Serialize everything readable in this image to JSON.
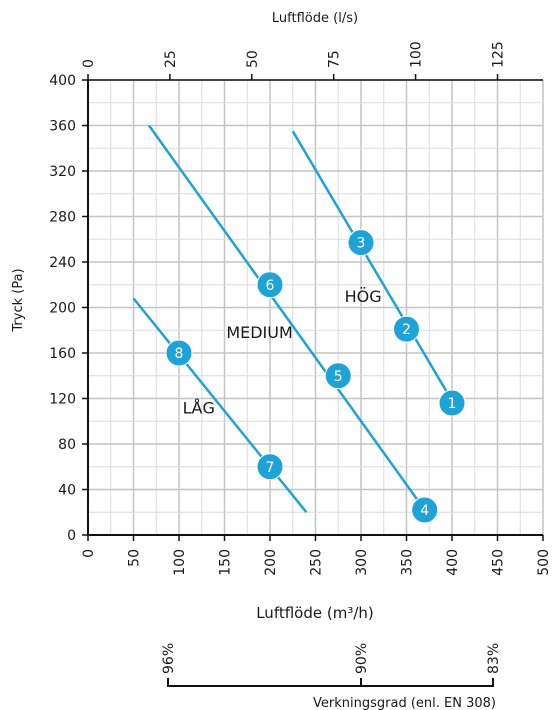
{
  "chart_data": {
    "type": "line",
    "xlabel": "Luftflöde (m³/h)",
    "ylabel": "Tryck (Pa)",
    "x2label": "Luftflöde (l/s)",
    "xlim": [
      0,
      500
    ],
    "ylim": [
      0,
      400
    ],
    "x_ticks": [
      0,
      50,
      100,
      150,
      200,
      250,
      300,
      350,
      400,
      450,
      500
    ],
    "y_ticks": [
      0,
      40,
      80,
      120,
      160,
      200,
      240,
      280,
      320,
      360,
      400
    ],
    "x2_ticks": [
      0,
      25,
      50,
      75,
      100,
      125
    ],
    "grid": true,
    "line_color": "#1fa3d6",
    "series": [
      {
        "name": "HÖG",
        "x": [
          225,
          400
        ],
        "y": [
          355,
          118
        ]
      },
      {
        "name": "MEDIUM",
        "x": [
          67,
          370
        ],
        "y": [
          360,
          22
        ]
      },
      {
        "name": "LÅG",
        "x": [
          50,
          240
        ],
        "y": [
          208,
          20
        ]
      }
    ],
    "points": [
      {
        "label": "1",
        "x": 400,
        "y": 116
      },
      {
        "label": "2",
        "x": 350,
        "y": 181
      },
      {
        "label": "3",
        "x": 300,
        "y": 257
      },
      {
        "label": "4",
        "x": 370,
        "y": 22
      },
      {
        "label": "5",
        "x": 275,
        "y": 140
      },
      {
        "label": "6",
        "x": 200,
        "y": 220
      },
      {
        "label": "7",
        "x": 200,
        "y": 60
      },
      {
        "label": "8",
        "x": 100,
        "y": 160
      }
    ],
    "efficiency_scale": {
      "label": "Verkningsgrad (enl. EN 308)",
      "ticks": [
        "96%",
        "90%",
        "83%"
      ]
    }
  }
}
